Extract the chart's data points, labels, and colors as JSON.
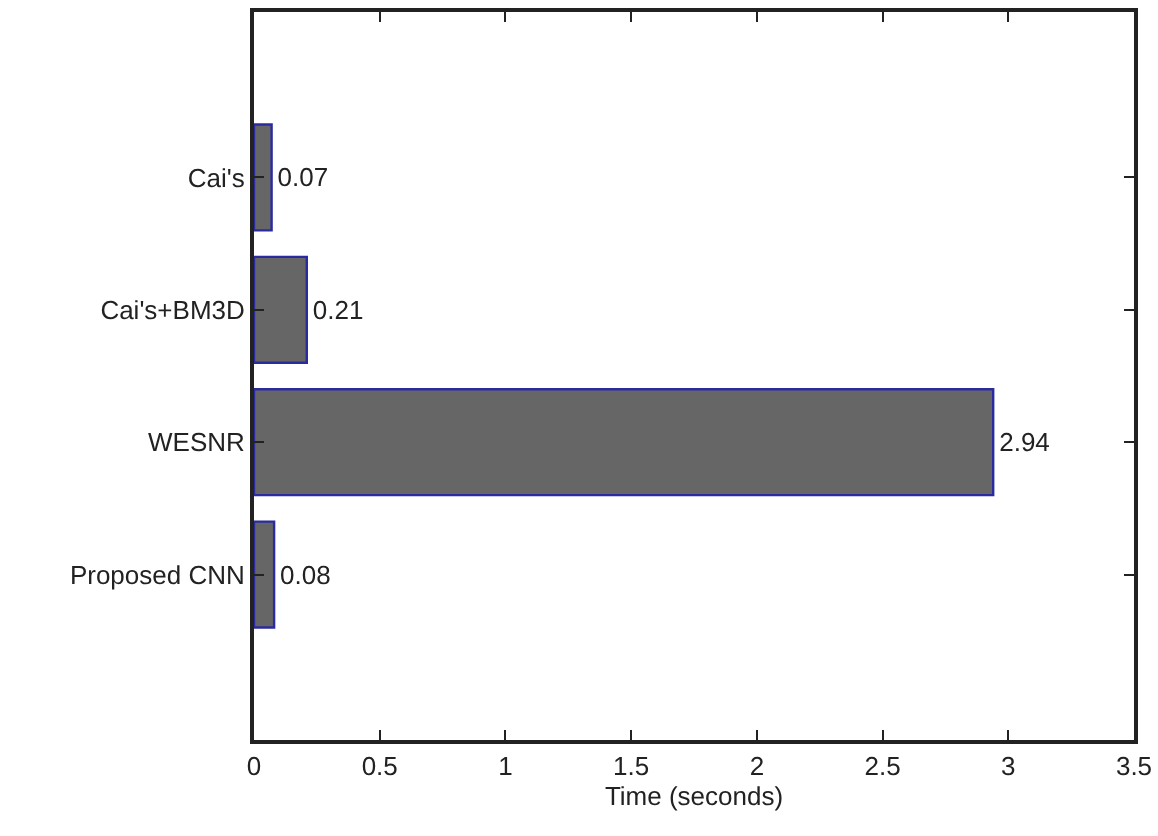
{
  "chart_data": {
    "type": "bar",
    "orientation": "horizontal",
    "categories": [
      "Cai's",
      "Cai's+BM3D",
      "WESNR",
      "Proposed CNN"
    ],
    "values": [
      0.07,
      0.21,
      2.94,
      0.08
    ],
    "color": "#666666",
    "data_labels": true,
    "xlabel": "Time (seconds)",
    "xlim": [
      0,
      3.5
    ],
    "xticks": [
      0,
      0.5,
      1,
      1.5,
      2,
      2.5,
      3,
      3.5
    ],
    "grid": false,
    "legend": false
  }
}
